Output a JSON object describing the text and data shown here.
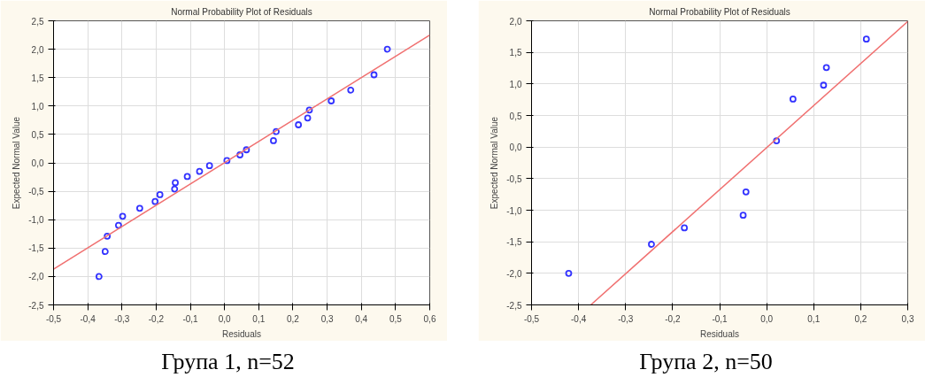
{
  "chart_data": [
    {
      "type": "scatter",
      "title": "Normal Probability Plot of Residuals",
      "xlabel": "Residuals",
      "ylabel": "Expected Normal Value",
      "annotations": [
        "Група 1, n=52"
      ],
      "grid": true,
      "xlim": [
        -0.5,
        0.6
      ],
      "ylim": [
        -2.5,
        2.5
      ],
      "xticks": [
        {
          "value": -0.5,
          "label": "-0,5"
        },
        {
          "value": -0.4,
          "label": "-0,4"
        },
        {
          "value": -0.3,
          "label": "-0,3"
        },
        {
          "value": -0.2,
          "label": "-0,2"
        },
        {
          "value": -0.1,
          "label": "-0,1"
        },
        {
          "value": 0,
          "label": "0,0"
        },
        {
          "value": 0.1,
          "label": "0,1"
        },
        {
          "value": 0.2,
          "label": "0,2"
        },
        {
          "value": 0.3,
          "label": "0,3"
        },
        {
          "value": 0.4,
          "label": "0,4"
        },
        {
          "value": 0.5,
          "label": "0,5"
        },
        {
          "value": 0.6,
          "label": "0,6"
        }
      ],
      "yticks": [
        {
          "value": -2.5,
          "label": "-2,5"
        },
        {
          "value": -2,
          "label": "-2,0"
        },
        {
          "value": -1.5,
          "label": "-1,5"
        },
        {
          "value": -1,
          "label": "-1,0"
        },
        {
          "value": -0.5,
          "label": "-0,5"
        },
        {
          "value": 0,
          "label": "0,0"
        },
        {
          "value": 0.5,
          "label": "0,5"
        },
        {
          "value": 1,
          "label": "1,0"
        },
        {
          "value": 1.5,
          "label": "1,5"
        },
        {
          "value": 2,
          "label": "2,0"
        },
        {
          "value": 2.5,
          "label": "2,5"
        }
      ],
      "series": [
        {
          "type": "scatter",
          "marker": "circle",
          "color": "#3333ff",
          "x": [
            -0.367,
            -0.349,
            -0.343,
            -0.31,
            -0.298,
            -0.248,
            -0.203,
            -0.189,
            -0.146,
            -0.144,
            -0.109,
            -0.073,
            -0.044,
            0.007,
            0.045,
            0.064,
            0.143,
            0.151,
            0.216,
            0.243,
            0.248,
            0.312,
            0.369,
            0.437,
            0.476
          ],
          "values": [
            -2.0,
            -1.56,
            -1.29,
            -1.1,
            -0.94,
            -0.8,
            -0.68,
            -0.56,
            -0.46,
            -0.35,
            -0.24,
            -0.15,
            -0.05,
            0.04,
            0.14,
            0.23,
            0.39,
            0.55,
            0.67,
            0.79,
            0.93,
            1.09,
            1.28,
            1.55,
            2.0
          ]
        },
        {
          "type": "line",
          "color": "#f07070",
          "x": [
            -0.5,
            0.6
          ],
          "values": [
            -1.87,
            2.25
          ]
        }
      ]
    },
    {
      "type": "scatter",
      "title": "Normal Probability Plot of Residuals",
      "xlabel": "Residuals",
      "ylabel": "Expected Normal Value",
      "annotations": [
        "Група 2, n=50"
      ],
      "grid": true,
      "xlim": [
        -0.5,
        0.3
      ],
      "ylim": [
        -2.5,
        2.0
      ],
      "xticks": [
        {
          "value": -0.5,
          "label": "-0,5"
        },
        {
          "value": -0.4,
          "label": "-0,4"
        },
        {
          "value": -0.3,
          "label": "-0,3"
        },
        {
          "value": -0.2,
          "label": "-0,2"
        },
        {
          "value": -0.1,
          "label": "-0,1"
        },
        {
          "value": 0,
          "label": "0,0"
        },
        {
          "value": 0.1,
          "label": "0,1"
        },
        {
          "value": 0.2,
          "label": "0,2"
        },
        {
          "value": 0.3,
          "label": "0,3"
        }
      ],
      "yticks": [
        {
          "value": -2.5,
          "label": "-2,5"
        },
        {
          "value": -2,
          "label": "-2,0"
        },
        {
          "value": -1.5,
          "label": "-1,5"
        },
        {
          "value": -1,
          "label": "-1,0"
        },
        {
          "value": -0.5,
          "label": "-0,5"
        },
        {
          "value": 0,
          "label": "0,0"
        },
        {
          "value": 0.5,
          "label": "0,5"
        },
        {
          "value": 1,
          "label": "1,0"
        },
        {
          "value": 1.5,
          "label": "1,5"
        },
        {
          "value": 2,
          "label": "2,0"
        }
      ],
      "series": [
        {
          "type": "scatter",
          "marker": "circle",
          "color": "#3333ff",
          "x": [
            -0.421,
            -0.245,
            -0.175,
            -0.05,
            -0.044,
            0.021,
            0.056,
            0.121,
            0.127,
            0.212
          ],
          "values": [
            -2.0,
            -1.54,
            -1.28,
            -1.08,
            -0.71,
            0.1,
            0.76,
            0.98,
            1.26,
            1.71
          ]
        },
        {
          "type": "line",
          "color": "#f07070",
          "x": [
            -0.374,
            0.3
          ],
          "values": [
            -2.5,
            1.99
          ]
        }
      ]
    }
  ]
}
